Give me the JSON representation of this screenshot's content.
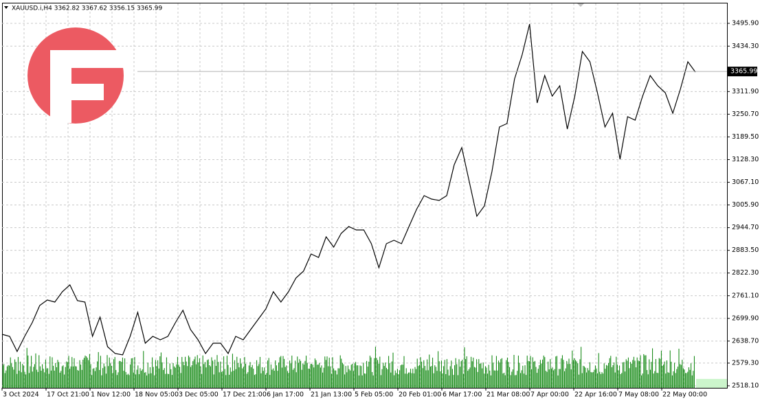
{
  "chart_data": {
    "type": "line",
    "header": "XAUUSD.i,H4  3362.82 3367.62 3356.15 3365.99",
    "last_price": {
      "value": 3365.99,
      "label": "3365.99"
    },
    "x_labels": [
      "3 Oct 2024",
      "17 Oct 21:00",
      "1 Nov 12:00",
      "18 Nov 05:00",
      "3 Dec 05:00",
      "17 Dec 21:00",
      "6 Jan 17:00",
      "21 Jan 13:00",
      "5 Feb 05:00",
      "20 Feb 01:00",
      "6 Mar 17:00",
      "21 Mar 08:00",
      "7 Apr 00:00",
      "22 Apr 16:00",
      "7 May 08:00",
      "22 May 00:00"
    ],
    "series": [
      {
        "name": "XAUUSD.i",
        "color": "#000000",
        "values": [
          2656.9,
          2651.4,
          2610.6,
          2651.4,
          2688.4,
          2734.7,
          2749.5,
          2744.0,
          2771.8,
          2790.3,
          2747.7,
          2744.0,
          2651.4,
          2703.2,
          2623.6,
          2605.1,
          2601.4,
          2651.4,
          2716.2,
          2632.9,
          2651.4,
          2642.1,
          2651.4,
          2688.4,
          2721.8,
          2669.9,
          2642.1,
          2605.1,
          2632.9,
          2632.9,
          2605.1,
          2651.4,
          2642.1,
          2669.9,
          2697.7,
          2725.5,
          2771.8,
          2744.0,
          2771.8,
          2808.8,
          2827.3,
          2873.6,
          2864.4,
          2919.9,
          2892.1,
          2929.2,
          2947.7,
          2938.4,
          2938.4,
          2901.4,
          2836.6,
          2901.4,
          2910.7,
          2901.4,
          2947.7,
          2994.0,
          3031.0,
          3021.8,
          3018.1,
          3031.0,
          3114.4,
          3160.7,
          3068.1,
          2975.5,
          3003.3,
          3095.9,
          3216.2,
          3225.5,
          3345.9,
          3410.7,
          3494.0,
          3281.1,
          3355.1,
          3299.6,
          3327.4,
          3210.7,
          3299.6,
          3420.0,
          3392.2,
          3308.8,
          3216.2,
          3253.3,
          3129.2,
          3244.0,
          3234.8,
          3299.6,
          3355.1,
          3327.4,
          3308.8,
          3253.3,
          3318.1,
          3392.2,
          3364.4
        ]
      }
    ],
    "ylim": [
      2512.5,
      3549.6
    ],
    "yticks": [
      {
        "value": 2518.1,
        "label": "2518.10"
      },
      {
        "value": 2579.3,
        "label": "2579.30"
      },
      {
        "value": 2638.7,
        "label": "2638.70"
      },
      {
        "value": 2699.9,
        "label": "2699.90"
      },
      {
        "value": 2761.1,
        "label": "2761.10"
      },
      {
        "value": 2822.3,
        "label": "2822.30"
      },
      {
        "value": 2883.5,
        "label": "2883.50"
      },
      {
        "value": 2944.7,
        "label": "2944.70"
      },
      {
        "value": 3005.9,
        "label": "3005.90"
      },
      {
        "value": 3067.1,
        "label": "3067.10"
      },
      {
        "value": 3128.3,
        "label": "3128.30"
      },
      {
        "value": 3189.5,
        "label": "3189.50"
      },
      {
        "value": 3250.7,
        "label": "3250.70"
      },
      {
        "value": 3311.9,
        "label": "3311.90"
      },
      {
        "value": 3434.3,
        "label": "3434.30"
      },
      {
        "value": 3495.9,
        "label": "3495.90"
      }
    ],
    "grid": true
  }
}
